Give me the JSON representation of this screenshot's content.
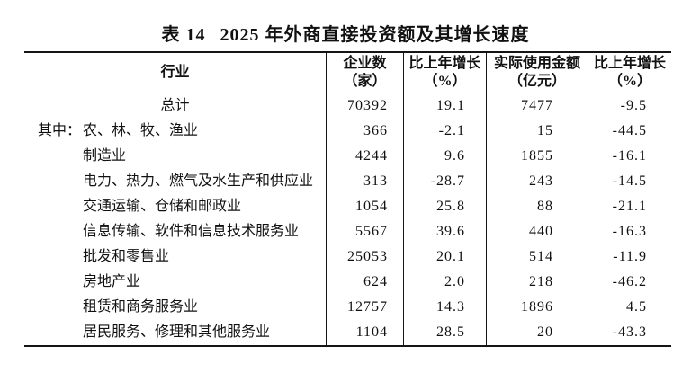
{
  "title": {
    "prefix": "表 14",
    "main": "2025 年外商直接投资额及其增长速度"
  },
  "table": {
    "headers": {
      "industry": "行业",
      "enterprises": {
        "line1": "企业数",
        "line2": "（家）"
      },
      "growth1": {
        "line1": "比上年增长",
        "line2": "（%）"
      },
      "amount": {
        "line1": "实际使用金额",
        "line2": "（亿元）"
      },
      "growth2": {
        "line1": "比上年增长",
        "line2": "（%）"
      }
    },
    "rows": [
      {
        "prefix": "",
        "industry": "总计",
        "enterprises": "70392",
        "growth1": "19.1",
        "amount": "7477",
        "growth2": "-9.5"
      },
      {
        "prefix": "其中：",
        "industry": "农、林、牧、渔业",
        "enterprises": "366",
        "growth1": "-2.1",
        "amount": "15",
        "growth2": "-44.5"
      },
      {
        "prefix": "",
        "industry": "制造业",
        "enterprises": "4244",
        "growth1": "9.6",
        "amount": "1855",
        "growth2": "-16.1"
      },
      {
        "prefix": "",
        "industry": "电力、热力、燃气及水生产和供应业",
        "enterprises": "313",
        "growth1": "-28.7",
        "amount": "243",
        "growth2": "-14.5"
      },
      {
        "prefix": "",
        "industry": "交通运输、仓储和邮政业",
        "enterprises": "1054",
        "growth1": "25.8",
        "amount": "88",
        "growth2": "-21.1"
      },
      {
        "prefix": "",
        "industry": "信息传输、软件和信息技术服务业",
        "enterprises": "5567",
        "growth1": "39.6",
        "amount": "440",
        "growth2": "-16.3"
      },
      {
        "prefix": "",
        "industry": "批发和零售业",
        "enterprises": "25053",
        "growth1": "20.1",
        "amount": "514",
        "growth2": "-11.9"
      },
      {
        "prefix": "",
        "industry": "房地产业",
        "enterprises": "624",
        "growth1": "2.0",
        "amount": "218",
        "growth2": "-46.2"
      },
      {
        "prefix": "",
        "industry": "租赁和商务服务业",
        "enterprises": "12757",
        "growth1": "14.3",
        "amount": "1896",
        "growth2": "4.5"
      },
      {
        "prefix": "",
        "industry": "居民服务、修理和其他服务业",
        "enterprises": "1104",
        "growth1": "28.5",
        "amount": "20",
        "growth2": "-43.3"
      }
    ]
  }
}
